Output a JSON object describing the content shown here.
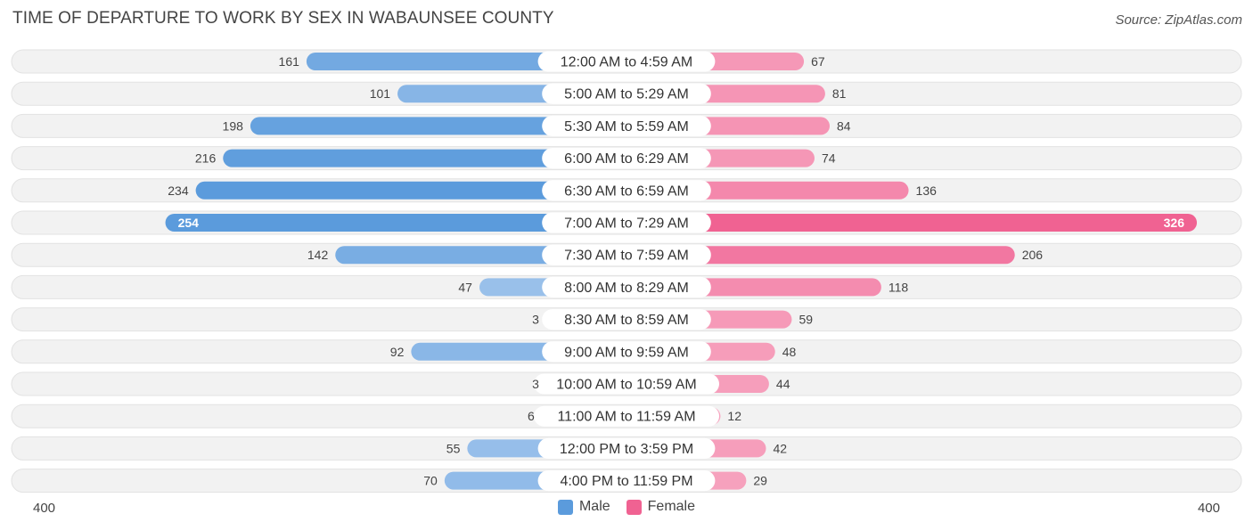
{
  "header": {
    "title": "TIME OF DEPARTURE TO WORK BY SEX IN WABAUNSEE COUNTY",
    "source": "Source: ZipAtlas.com"
  },
  "legend": {
    "male_label": "Male",
    "female_label": "Female"
  },
  "axis": {
    "left_label": "400",
    "right_label": "400"
  },
  "colors": {
    "male_strong": "#5b9bdc",
    "male_light": "#a9c9ee",
    "female_strong": "#f06292",
    "female_light": "#f7a8c2",
    "row_bg": "#f2f2f2"
  },
  "chart_data": {
    "type": "bar",
    "orientation": "horizontal-diverging",
    "title": "TIME OF DEPARTURE TO WORK BY SEX IN WABAUNSEE COUNTY",
    "xlim": [
      -400,
      400
    ],
    "categories": [
      "12:00 AM to 4:59 AM",
      "5:00 AM to 5:29 AM",
      "5:30 AM to 5:59 AM",
      "6:00 AM to 6:29 AM",
      "6:30 AM to 6:59 AM",
      "7:00 AM to 7:29 AM",
      "7:30 AM to 7:59 AM",
      "8:00 AM to 8:29 AM",
      "8:30 AM to 8:59 AM",
      "9:00 AM to 9:59 AM",
      "10:00 AM to 10:59 AM",
      "11:00 AM to 11:59 AM",
      "12:00 PM to 3:59 PM",
      "4:00 PM to 11:59 PM"
    ],
    "series": [
      {
        "name": "Male",
        "values": [
          161,
          101,
          198,
          216,
          234,
          254,
          142,
          47,
          3,
          92,
          3,
          6,
          55,
          70
        ]
      },
      {
        "name": "Female",
        "values": [
          67,
          81,
          84,
          74,
          136,
          326,
          206,
          118,
          59,
          48,
          44,
          12,
          42,
          29
        ]
      }
    ],
    "legend_position": "bottom-center"
  }
}
